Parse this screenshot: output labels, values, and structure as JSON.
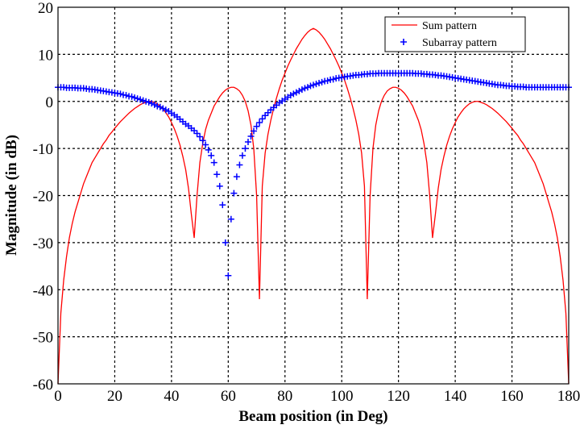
{
  "chart_data": {
    "type": "line",
    "title": "",
    "xlabel": "Beam position (in Deg)",
    "ylabel": "Magnitude (in dB)",
    "xlim": [
      0,
      180
    ],
    "ylim": [
      -60,
      20
    ],
    "xticks": [
      0,
      20,
      40,
      60,
      80,
      100,
      120,
      140,
      160,
      180
    ],
    "yticks": [
      20,
      10,
      0,
      -10,
      -20,
      -30,
      -40,
      -50,
      -60
    ],
    "grid": true,
    "legend_position": "top-right",
    "x": [
      0,
      1,
      2,
      3,
      4,
      5,
      6,
      7,
      8,
      9,
      10,
      11,
      12,
      13,
      14,
      15,
      16,
      17,
      18,
      19,
      20,
      21,
      22,
      23,
      24,
      25,
      26,
      27,
      28,
      29,
      30,
      31,
      32,
      33,
      34,
      35,
      36,
      37,
      38,
      39,
      40,
      41,
      42,
      43,
      44,
      45,
      46,
      47,
      48,
      49,
      50,
      51,
      52,
      53,
      54,
      55,
      56,
      57,
      58,
      59,
      60,
      61,
      62,
      63,
      64,
      65,
      66,
      67,
      68,
      69,
      70,
      71,
      72,
      73,
      74,
      75,
      76,
      77,
      78,
      79,
      80,
      81,
      82,
      83,
      84,
      85,
      86,
      87,
      88,
      89,
      90,
      91,
      92,
      93,
      94,
      95,
      96,
      97,
      98,
      99,
      100,
      101,
      102,
      103,
      104,
      105,
      106,
      107,
      108,
      109,
      110,
      111,
      112,
      113,
      114,
      115,
      116,
      117,
      118,
      119,
      120,
      121,
      122,
      123,
      124,
      125,
      126,
      127,
      128,
      129,
      130,
      131,
      132,
      133,
      134,
      135,
      136,
      137,
      138,
      139,
      140,
      141,
      142,
      143,
      144,
      145,
      146,
      147,
      148,
      149,
      150,
      151,
      152,
      153,
      154,
      155,
      156,
      157,
      158,
      159,
      160,
      161,
      162,
      163,
      164,
      165,
      166,
      167,
      168,
      169,
      170,
      171,
      172,
      173,
      174,
      175,
      176,
      177,
      178,
      179,
      180
    ],
    "series": [
      {
        "name": "Sum pattern",
        "style": "line",
        "color": "#ff0000",
        "values": [
          -60,
          -45,
          -38,
          -33,
          -29,
          -26,
          -23.5,
          -21.5,
          -19.5,
          -17.5,
          -16,
          -14.5,
          -13,
          -12,
          -11,
          -10,
          -9,
          -8.2,
          -7.2,
          -6.5,
          -5.7,
          -5,
          -4.3,
          -3.7,
          -3.1,
          -2.5,
          -2,
          -1.5,
          -1.1,
          -0.7,
          -0.4,
          -0.2,
          0,
          0,
          -0.2,
          -0.5,
          -1,
          -1.6,
          -2.4,
          -3.3,
          -4.5,
          -5.8,
          -7.4,
          -9.3,
          -11.7,
          -14.5,
          -18.5,
          -24,
          -29,
          -20,
          -13,
          -9,
          -6,
          -4,
          -2.5,
          -1,
          0,
          1,
          1.8,
          2.4,
          2.8,
          3,
          3,
          2.7,
          2.2,
          1.3,
          0,
          -2,
          -5,
          -10,
          -20,
          -42,
          -18,
          -11,
          -7,
          -4,
          -1.5,
          0.7,
          2.7,
          4.5,
          6,
          7.5,
          8.8,
          10,
          11.2,
          12.2,
          13.2,
          14,
          14.7,
          15.2,
          15.5,
          15.2,
          14.7,
          14,
          13.2,
          12.2,
          11.2,
          10,
          8.8,
          7.5,
          6,
          4.5,
          2.7,
          0.7,
          -1.5,
          -4,
          -7,
          -11,
          -18,
          -42,
          -20,
          -10,
          -5,
          -2,
          0,
          1.3,
          2.2,
          2.7,
          3,
          3,
          2.8,
          2.4,
          1.8,
          1,
          0,
          -1,
          -2.5,
          -4,
          -6,
          -9,
          -13,
          -20,
          -29,
          -24,
          -18.5,
          -14.5,
          -11.7,
          -9.3,
          -7.4,
          -5.8,
          -4.5,
          -3.3,
          -2.4,
          -1.6,
          -1,
          -0.5,
          -0.2,
          0,
          0,
          -0.2,
          -0.4,
          -0.7,
          -1.1,
          -1.5,
          -2,
          -2.5,
          -3.1,
          -3.7,
          -4.3,
          -5,
          -5.7,
          -6.5,
          -7.2,
          -8.2,
          -9,
          -10,
          -11,
          -12,
          -13,
          -14.5,
          -16,
          -17.5,
          -19.5,
          -21.5,
          -23.5,
          -26,
          -29,
          -33,
          -38,
          -45,
          -60
        ]
      },
      {
        "name": "Subarray pattern",
        "style": "markers-plus",
        "color": "#0000ff",
        "values": [
          3.0,
          3.0,
          3.0,
          2.9,
          2.9,
          2.9,
          2.9,
          2.8,
          2.8,
          2.8,
          2.7,
          2.6,
          2.6,
          2.5,
          2.4,
          2.3,
          2.2,
          2.1,
          2.0,
          1.9,
          1.8,
          1.7,
          1.6,
          1.4,
          1.3,
          1.1,
          1.0,
          0.8,
          0.6,
          0.4,
          0.2,
          0,
          -0.2,
          -0.4,
          -0.7,
          -1,
          -1.2,
          -1.5,
          -1.8,
          -2.1,
          -2.5,
          -2.9,
          -3.3,
          -3.8,
          -4.3,
          -4.8,
          -5.2,
          -5.7,
          -6.2,
          -6.8,
          -7.5,
          -8.3,
          -9.2,
          -10.3,
          -11.5,
          -13,
          -15.5,
          -18,
          -22,
          -30,
          -37,
          -25,
          -19.5,
          -16,
          -13.5,
          -11.5,
          -10,
          -8.6,
          -7.4,
          -6.3,
          -5.3,
          -4.5,
          -3.7,
          -3,
          -2.4,
          -1.8,
          -1.3,
          -0.8,
          -0.3,
          0.1,
          0.5,
          0.9,
          1.3,
          1.6,
          1.9,
          2.2,
          2.5,
          2.8,
          3.0,
          3.3,
          3.5,
          3.7,
          3.9,
          4.1,
          4.3,
          4.4,
          4.6,
          4.7,
          4.9,
          5.0,
          5.1,
          5.2,
          5.3,
          5.4,
          5.5,
          5.6,
          5.6,
          5.7,
          5.8,
          5.8,
          5.9,
          5.9,
          5.9,
          6.0,
          6.0,
          6.0,
          6.0,
          6.0,
          6.0,
          6.0,
          6.0,
          6.0,
          6.0,
          6.0,
          6.0,
          6.0,
          5.9,
          5.9,
          5.9,
          5.8,
          5.8,
          5.7,
          5.7,
          5.6,
          5.5,
          5.5,
          5.4,
          5.3,
          5.2,
          5.1,
          5.0,
          4.9,
          4.8,
          4.7,
          4.6,
          4.5,
          4.4,
          4.3,
          4.2,
          4.1,
          4.0,
          3.9,
          3.8,
          3.7,
          3.6,
          3.5,
          3.5,
          3.4,
          3.3,
          3.3,
          3.2,
          3.2,
          3.1,
          3.1,
          3.1,
          3.0,
          3.0,
          3.0,
          3.0,
          3.0,
          3.0,
          3.0,
          3.0,
          3.0,
          3.0,
          3.0,
          3.0,
          3.0,
          3.0,
          3.0,
          3.0
        ]
      }
    ]
  }
}
